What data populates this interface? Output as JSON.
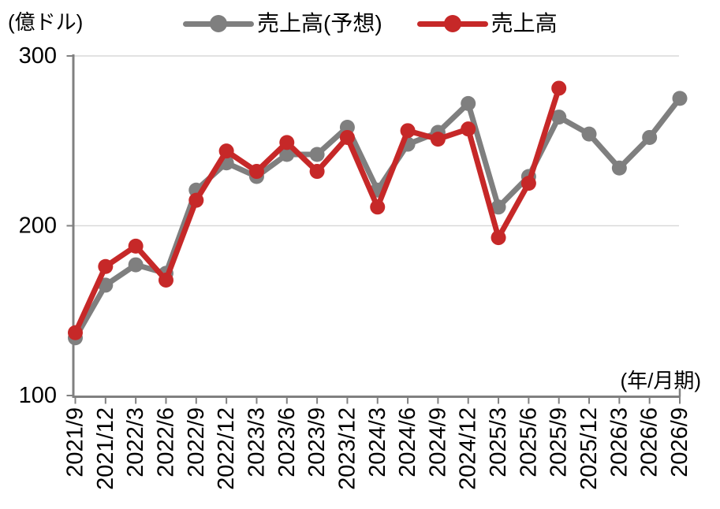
{
  "chart_data": {
    "type": "line",
    "unit_label": "(億ドル)",
    "xaxis_label": "(年/月期)",
    "categories": [
      "2021/9",
      "2021/12",
      "2022/3",
      "2022/6",
      "2022/9",
      "2022/12",
      "2023/3",
      "2023/6",
      "2023/9",
      "2023/12",
      "2024/3",
      "2024/6",
      "2024/9",
      "2024/12",
      "2025/3",
      "2025/6",
      "2025/9",
      "2025/12",
      "2026/3",
      "2026/6",
      "2026/9"
    ],
    "series": [
      {
        "name": "売上高(予想)",
        "color": "#7F7F7F",
        "values": [
          134,
          165,
          177,
          172,
          221,
          237,
          229,
          242,
          242,
          258,
          221,
          248,
          255,
          272,
          211,
          229,
          264,
          254,
          234,
          252,
          275
        ]
      },
      {
        "name": "売上高",
        "color": "#C62828",
        "values": [
          137,
          176,
          188,
          168,
          215,
          244,
          232,
          249,
          232,
          252,
          211,
          256,
          251,
          257,
          193,
          225,
          281,
          null,
          null,
          null,
          null
        ]
      }
    ],
    "ylim": [
      100,
      300
    ],
    "yticks": [
      100,
      200,
      300
    ],
    "legend_position": "top",
    "grid": "horizontal"
  },
  "colors": {
    "axis": "#808080",
    "gridline": "#D9D9D9",
    "text": "#000000",
    "background": "#FFFFFF"
  }
}
